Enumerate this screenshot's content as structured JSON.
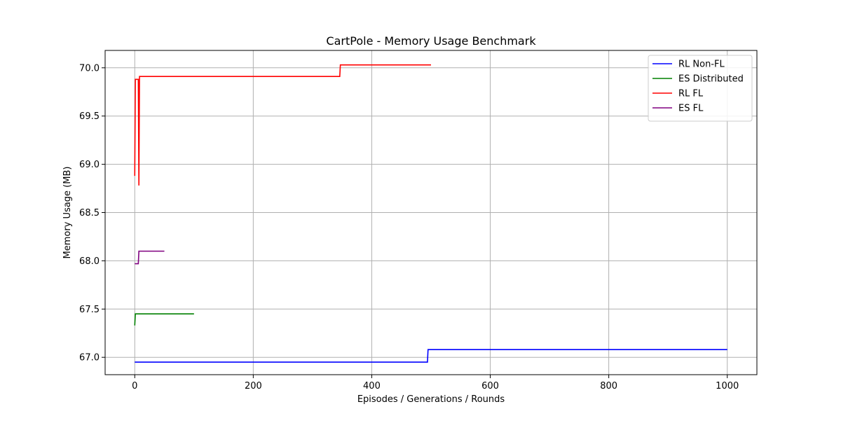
{
  "chart_data": {
    "type": "line",
    "title": "CartPole - Memory Usage Benchmark",
    "xlabel": "Episodes / Generations / Rounds",
    "ylabel": "Memory Usage (MB)",
    "xlim": [
      -50,
      1050
    ],
    "ylim": [
      66.82,
      70.18
    ],
    "xticks": [
      0,
      200,
      400,
      600,
      800,
      1000
    ],
    "yticks": [
      67.0,
      67.5,
      68.0,
      68.5,
      69.0,
      69.5,
      70.0
    ],
    "grid": true,
    "legend_position": "top-right",
    "series": [
      {
        "name": "RL Non-FL",
        "color": "#0000ff",
        "points": [
          [
            0,
            66.95
          ],
          [
            494,
            66.95
          ],
          [
            495,
            67.08
          ],
          [
            1000,
            67.08
          ]
        ]
      },
      {
        "name": "ES Distributed",
        "color": "#008000",
        "points": [
          [
            0,
            67.33
          ],
          [
            1,
            67.45
          ],
          [
            100,
            67.45
          ]
        ]
      },
      {
        "name": "RL FL",
        "color": "#ff0000",
        "points": [
          [
            0,
            68.88
          ],
          [
            1,
            69.88
          ],
          [
            6,
            69.88
          ],
          [
            7,
            68.78
          ],
          [
            8,
            69.91
          ],
          [
            346,
            69.91
          ],
          [
            347,
            70.03
          ],
          [
            500,
            70.03
          ]
        ]
      },
      {
        "name": "ES FL",
        "color": "#800080",
        "points": [
          [
            0,
            67.97
          ],
          [
            6,
            67.97
          ],
          [
            7,
            68.1
          ],
          [
            50,
            68.1
          ]
        ]
      }
    ]
  }
}
